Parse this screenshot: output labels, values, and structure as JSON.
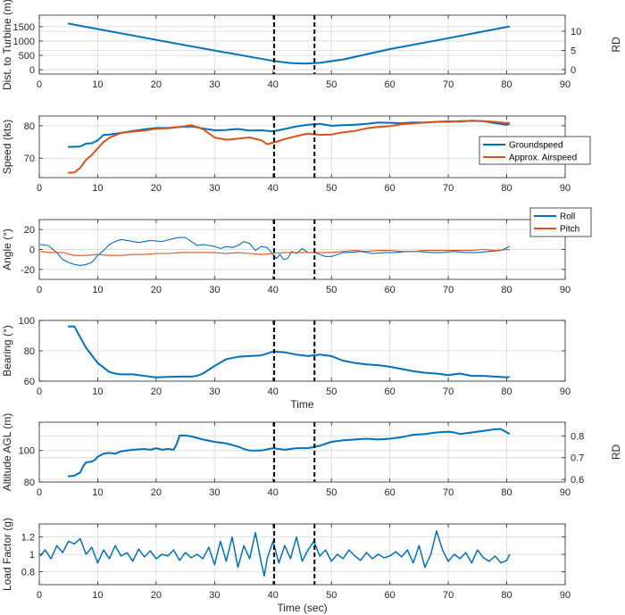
{
  "chart_data": [
    {
      "type": "line",
      "id": "p1",
      "ylabel": "Dist. to Turbine (m)",
      "yrlabel": "RD",
      "xlabel": "",
      "xlim": [
        0,
        90
      ],
      "ylim": [
        -150,
        1900
      ],
      "yticks": [
        0,
        500,
        1000,
        1500
      ],
      "yrlim": [
        -1.2,
        14.2
      ],
      "yrticks": [
        0,
        5,
        10
      ],
      "xticks": [
        0,
        10,
        20,
        30,
        40,
        50,
        60,
        70,
        80,
        90
      ],
      "vlines": [
        40.2,
        47.1
      ],
      "series": [
        {
          "name": "",
          "color": "#0072BD",
          "width": 2,
          "x": [
            4.9,
            10,
            20,
            30,
            40,
            43,
            45.5,
            48,
            52,
            60,
            70,
            80.5
          ],
          "y": [
            1610,
            1420,
            1040,
            670,
            310,
            235,
            215,
            240,
            360,
            720,
            1100,
            1510
          ]
        }
      ]
    },
    {
      "type": "line",
      "id": "p2",
      "ylabel": "Speed (kts)",
      "xlabel": "",
      "xlim": [
        0,
        90
      ],
      "ylim": [
        64,
        83
      ],
      "yticks": [
        70,
        80
      ],
      "xticks": [
        0,
        10,
        20,
        30,
        40,
        50,
        60,
        70,
        80,
        90
      ],
      "vlines": [
        40.2,
        47.1
      ],
      "legend": "right",
      "series": [
        {
          "name": "Groundspeed",
          "color": "#0072BD",
          "width": 2,
          "x": [
            4.9,
            6,
            7,
            8,
            9,
            10,
            11,
            12,
            14,
            16,
            18,
            20,
            22,
            24,
            26,
            28,
            30,
            32,
            34,
            36,
            38,
            40,
            42,
            44,
            46,
            48,
            50,
            52,
            54,
            56,
            58,
            60,
            62,
            64,
            66,
            68,
            70,
            72,
            74,
            76,
            78,
            80,
            80.5
          ],
          "y": [
            73.5,
            73.5,
            73.6,
            74.5,
            74.6,
            75.5,
            77.2,
            77.3,
            77.8,
            78.4,
            78.9,
            79.3,
            79.3,
            79.6,
            79.8,
            79.2,
            78.6,
            78.7,
            79.0,
            78.5,
            78.6,
            78.3,
            79.0,
            79.8,
            80.3,
            80.6,
            80.0,
            80.2,
            80.3,
            80.6,
            81.0,
            80.9,
            80.8,
            81.0,
            81.0,
            81.2,
            81.2,
            81.4,
            81.5,
            81.4,
            80.8,
            80.3,
            80.6
          ]
        },
        {
          "name": "Approx. Airspeed",
          "color": "#D95319",
          "width": 2,
          "x": [
            4.9,
            6,
            7,
            8,
            9,
            10,
            11,
            12,
            14,
            16,
            18,
            20,
            22,
            24,
            26,
            28,
            30,
            32,
            34,
            36,
            38,
            39,
            40,
            41,
            42,
            44,
            46,
            48,
            50,
            52,
            54,
            56,
            58,
            60,
            62,
            64,
            66,
            68,
            70,
            72,
            74,
            76,
            78,
            80,
            80.5
          ],
          "y": [
            65.5,
            65.6,
            67.0,
            69.5,
            71.0,
            73.0,
            75.0,
            76.3,
            77.8,
            78.2,
            78.5,
            79.1,
            79.2,
            79.6,
            80.2,
            79.0,
            76.4,
            75.7,
            76.0,
            76.4,
            75.5,
            74.3,
            74.8,
            75.3,
            75.9,
            76.8,
            77.6,
            77.2,
            77.3,
            78.0,
            78.4,
            79.2,
            79.6,
            79.9,
            80.5,
            80.7,
            81.0,
            81.2,
            81.4,
            81.3,
            81.6,
            81.4,
            81.2,
            80.8,
            81.0
          ]
        }
      ]
    },
    {
      "type": "line",
      "id": "p3",
      "ylabel": "Angle (°)",
      "xlabel": "",
      "xlim": [
        0,
        90
      ],
      "ylim": [
        -30,
        30
      ],
      "yticks": [
        -20,
        0,
        20
      ],
      "xticks": [
        0,
        10,
        20,
        30,
        40,
        50,
        60,
        70,
        80,
        90
      ],
      "vlines": [
        40.2,
        47.1
      ],
      "legend": "top-right",
      "series": [
        {
          "name": "Roll",
          "color": "#0072BD",
          "width": 1.1,
          "x": [
            0.2,
            1.5,
            3,
            4,
            5,
            6,
            7,
            8,
            9,
            10,
            11,
            12,
            13,
            14,
            15,
            17,
            19,
            21,
            23,
            24,
            25,
            26,
            27,
            28,
            29,
            30,
            31,
            32,
            33,
            34,
            35,
            36,
            37,
            38,
            39,
            40,
            40.6,
            41.2,
            41.8,
            42.5,
            43.2,
            44,
            45,
            46,
            47,
            48,
            49,
            50,
            51,
            52,
            53,
            55,
            57,
            59,
            61,
            63,
            65,
            67,
            69,
            71,
            73,
            75,
            77,
            79,
            80.5
          ],
          "y": [
            5,
            4,
            -3,
            -10,
            -13,
            -15,
            -16,
            -15,
            -13,
            -6,
            -1,
            5,
            8,
            10,
            9,
            7,
            9,
            8,
            11,
            12,
            12,
            8,
            4,
            5,
            4,
            3,
            1,
            3,
            2,
            4,
            8,
            6,
            -1,
            3,
            2,
            -5,
            -9,
            -5,
            -10,
            -9,
            -2,
            -4,
            1,
            -3,
            -3,
            -5,
            -7,
            -7,
            -5,
            -3,
            -3,
            -2,
            -4,
            -3,
            -3,
            -2,
            -2,
            -3,
            -3,
            -2,
            -3,
            -3,
            -2,
            -1,
            3
          ]
        },
        {
          "name": "Pitch",
          "color": "#D95319",
          "width": 1.1,
          "x": [
            0.2,
            2,
            4,
            6,
            8,
            10,
            12,
            14,
            16,
            18,
            20,
            22,
            24,
            26,
            28,
            30,
            32,
            34,
            36,
            38,
            40,
            42,
            44,
            46,
            48,
            50,
            52,
            54,
            56,
            58,
            60,
            62,
            64,
            66,
            68,
            70,
            72,
            74,
            76,
            78,
            80.5
          ],
          "y": [
            -2,
            -3,
            -3,
            -6,
            -6,
            -5,
            -6,
            -6,
            -5,
            -5,
            -4,
            -4,
            -3,
            -3,
            -3,
            -3,
            -4,
            -3,
            -4,
            -5,
            -4,
            -3,
            -3,
            -3,
            -3,
            -3,
            -2,
            -1,
            -2,
            -1,
            -1,
            -2,
            -2,
            -1,
            -1,
            -1,
            -1,
            -1,
            0,
            -1,
            0
          ]
        }
      ]
    },
    {
      "type": "line",
      "id": "p4",
      "ylabel": "Bearing (°)",
      "xlabel": "Time",
      "xlim": [
        0,
        90
      ],
      "ylim": [
        60,
        100
      ],
      "yticks": [
        60,
        80,
        100
      ],
      "xticks": [
        0,
        10,
        20,
        30,
        40,
        50,
        60,
        70,
        80,
        90
      ],
      "vlines": [
        40.2,
        47.1
      ],
      "series": [
        {
          "name": "",
          "color": "#0072BD",
          "width": 2,
          "x": [
            4.9,
            6,
            7,
            8,
            9,
            10,
            11,
            12,
            13,
            14,
            16,
            18,
            20,
            22,
            24,
            26,
            27,
            28,
            30,
            32,
            34,
            36,
            38,
            40,
            42,
            44,
            46,
            48,
            50,
            52,
            54,
            56,
            58,
            60,
            62,
            64,
            66,
            68,
            70,
            72,
            74,
            76,
            78,
            80,
            80.5
          ],
          "y": [
            96,
            96,
            89,
            82,
            77,
            72,
            69,
            66,
            65,
            64.5,
            64.5,
            63.5,
            62.5,
            62.8,
            63,
            63,
            63.5,
            65,
            70,
            74.5,
            76,
            76.5,
            77,
            79.5,
            79,
            77.5,
            76.5,
            77.5,
            76.5,
            73.5,
            72,
            71,
            70.5,
            69.5,
            68,
            66.5,
            65.5,
            65,
            64,
            65,
            63.5,
            63.5,
            63,
            62.5,
            62.8
          ]
        }
      ]
    },
    {
      "type": "line",
      "id": "p5",
      "ylabel": "Altitude AGL (m)",
      "yrlabel": "RD",
      "xlabel": "",
      "xlim": [
        0,
        90
      ],
      "ylim": [
        80,
        118
      ],
      "yticks": [
        80,
        100
      ],
      "yrlim": [
        0.588,
        0.863
      ],
      "yrticks": [
        0.6,
        0.7,
        0.8
      ],
      "xticks": [
        0,
        10,
        20,
        30,
        40,
        50,
        60,
        70,
        80,
        90
      ],
      "vlines": [
        40.2,
        47.1
      ],
      "series": [
        {
          "name": "",
          "color": "#0072BD",
          "width": 2,
          "x": [
            4.9,
            6,
            7,
            7.5,
            8,
            9,
            9.5,
            10,
            11,
            12,
            13,
            14,
            15,
            16,
            18,
            19,
            20,
            21,
            22,
            23,
            23.5,
            24,
            25,
            26,
            28,
            30,
            32,
            34,
            35,
            36,
            38,
            40,
            42,
            44,
            46,
            48,
            50,
            52,
            54,
            56,
            58,
            60,
            62,
            64,
            66,
            68,
            70,
            71,
            72,
            74,
            76,
            78,
            79,
            80.5
          ],
          "y": [
            83.5,
            84,
            86,
            90,
            92.5,
            93,
            94,
            96,
            98,
            98.5,
            98,
            99.5,
            100,
            100.5,
            101,
            100.5,
            101.5,
            100.5,
            101,
            100.5,
            104,
            109.5,
            109.5,
            109,
            107,
            105.5,
            104.5,
            102.5,
            101,
            100,
            100,
            101.5,
            100.5,
            101.5,
            101.5,
            103,
            105.5,
            106.5,
            107,
            107.5,
            107,
            107.5,
            108.5,
            110,
            110.5,
            111.5,
            112,
            111.5,
            110.5,
            111.5,
            112.5,
            113.5,
            113.7,
            110.5
          ]
        }
      ]
    },
    {
      "type": "line",
      "id": "p6",
      "ylabel": "Load Factor (g)",
      "xlabel": "Time (sec)",
      "xlim": [
        0,
        90
      ],
      "ylim": [
        0.65,
        1.35
      ],
      "yticks": [
        0.8,
        1,
        1.2
      ],
      "ytickLabels": [
        "0.8",
        "1",
        "1.2"
      ],
      "xticks": [
        0,
        10,
        20,
        30,
        40,
        50,
        60,
        70,
        80,
        90
      ],
      "vlines": [
        40.2,
        47.1
      ],
      "series": [
        {
          "name": "",
          "color": "#0072BD",
          "width": 1.5,
          "x": [
            0.2,
            1,
            2,
            3,
            4,
            5,
            6,
            7,
            8,
            9,
            10,
            11,
            12,
            13,
            14,
            15,
            16,
            17,
            18,
            19,
            20,
            21,
            22,
            23,
            24,
            25,
            26,
            27,
            28,
            29,
            30,
            31,
            32,
            33,
            34,
            35,
            36,
            37,
            38,
            38.5,
            39,
            40,
            41,
            42,
            43,
            44,
            45,
            46,
            47,
            48,
            49,
            50,
            51,
            52,
            53,
            54,
            55,
            56,
            57,
            58,
            59,
            60,
            61,
            62,
            63,
            64,
            65,
            66,
            67,
            68,
            69,
            70,
            71,
            72,
            73,
            74,
            75,
            76,
            77,
            78,
            79,
            80,
            80.5
          ],
          "y": [
            0.98,
            1.05,
            0.95,
            1.1,
            1.02,
            1.15,
            1.12,
            1.18,
            1.0,
            1.08,
            0.9,
            1.05,
            0.95,
            1.1,
            0.98,
            1.02,
            0.92,
            1.06,
            0.97,
            1.04,
            0.95,
            1.0,
            0.98,
            1.05,
            0.93,
            1.02,
            0.96,
            1.0,
            0.95,
            1.08,
            0.88,
            1.15,
            0.92,
            1.2,
            0.85,
            1.1,
            0.95,
            1.25,
            0.9,
            0.75,
            0.95,
            1.15,
            0.9,
            1.1,
            0.95,
            1.2,
            0.92,
            1.05,
            1.15,
            0.98,
            1.05,
            0.92,
            1.0,
            0.95,
            1.05,
            0.98,
            0.93,
            1.02,
            0.95,
            1.0,
            0.96,
            0.98,
            1.03,
            0.97,
            1.05,
            0.9,
            1.1,
            0.85,
            1.0,
            1.27,
            1.05,
            0.92,
            1.0,
            0.95,
            1.02,
            0.9,
            1.05,
            0.96,
            0.92,
            0.98,
            0.9,
            0.93,
            1.0
          ]
        }
      ]
    }
  ]
}
